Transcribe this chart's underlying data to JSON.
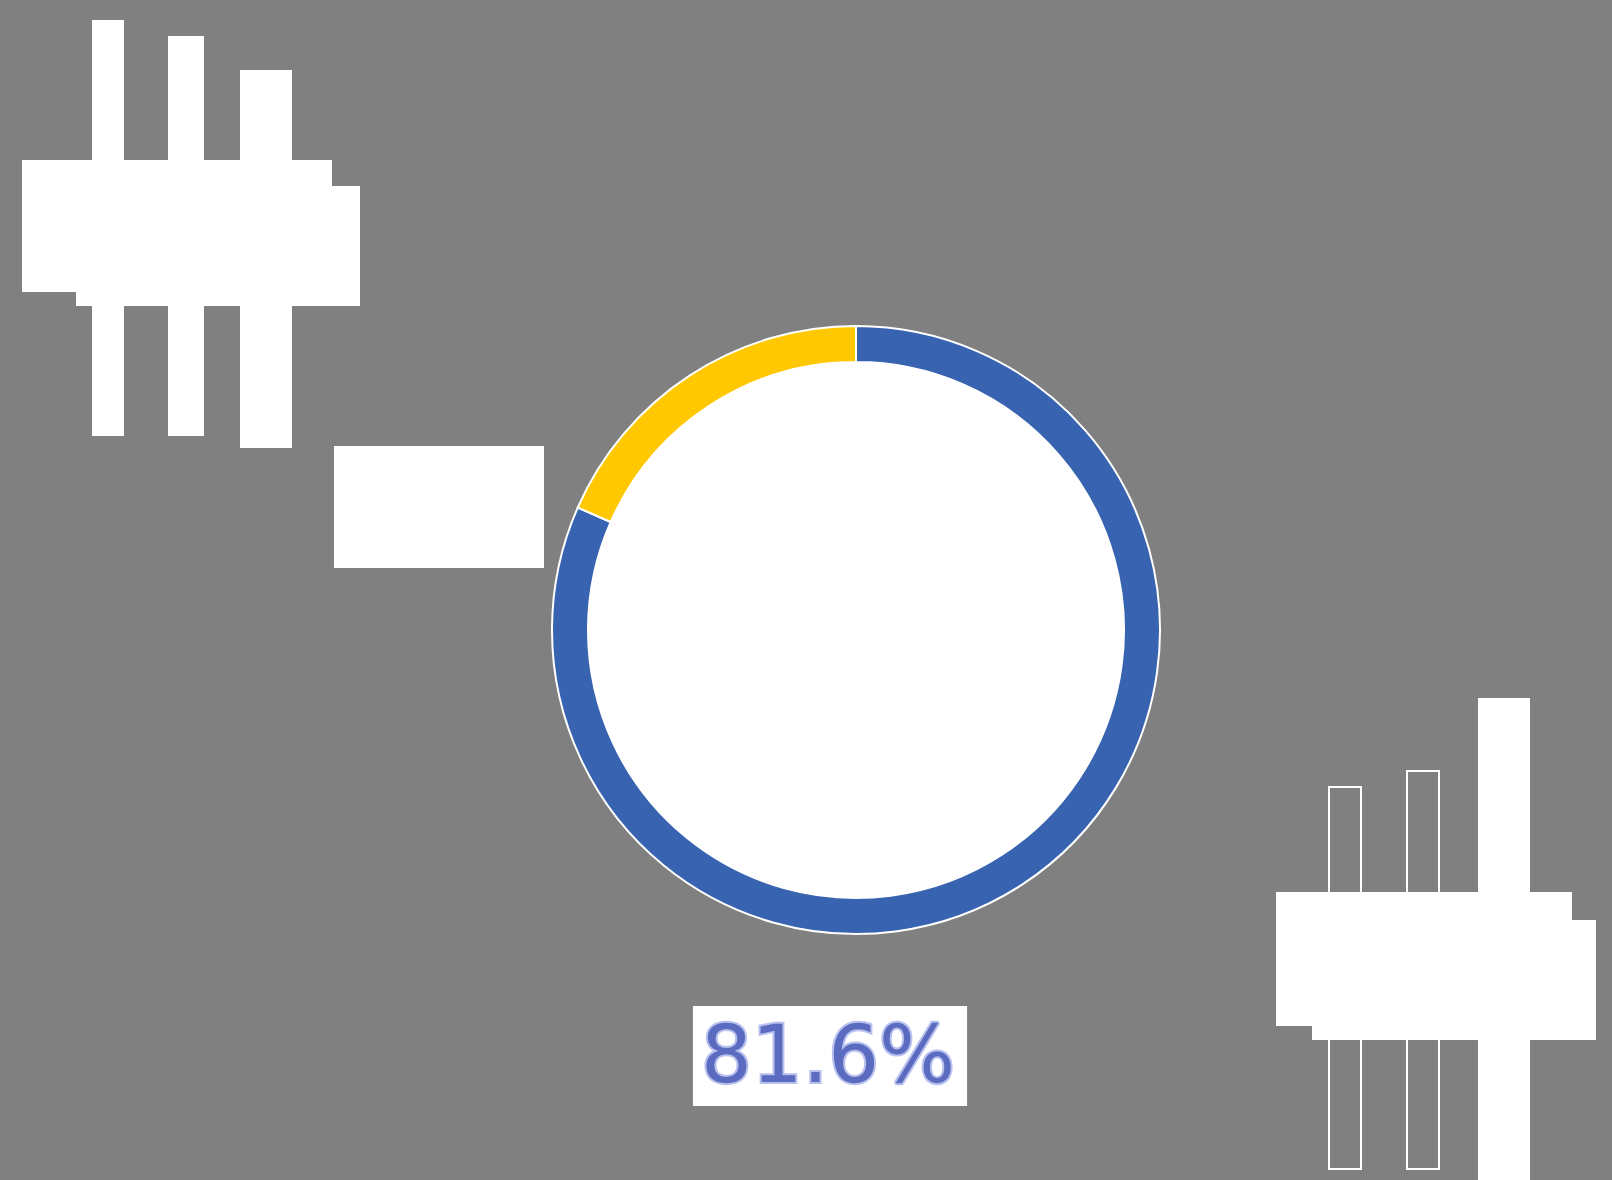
{
  "chart_data": {
    "type": "donut",
    "categories": [
      null,
      null
    ],
    "values": [
      81.6,
      18.4
    ],
    "colors": [
      "#3763b0",
      "#ffc800"
    ],
    "value_labels": [
      "81.6%",
      null
    ]
  }
}
